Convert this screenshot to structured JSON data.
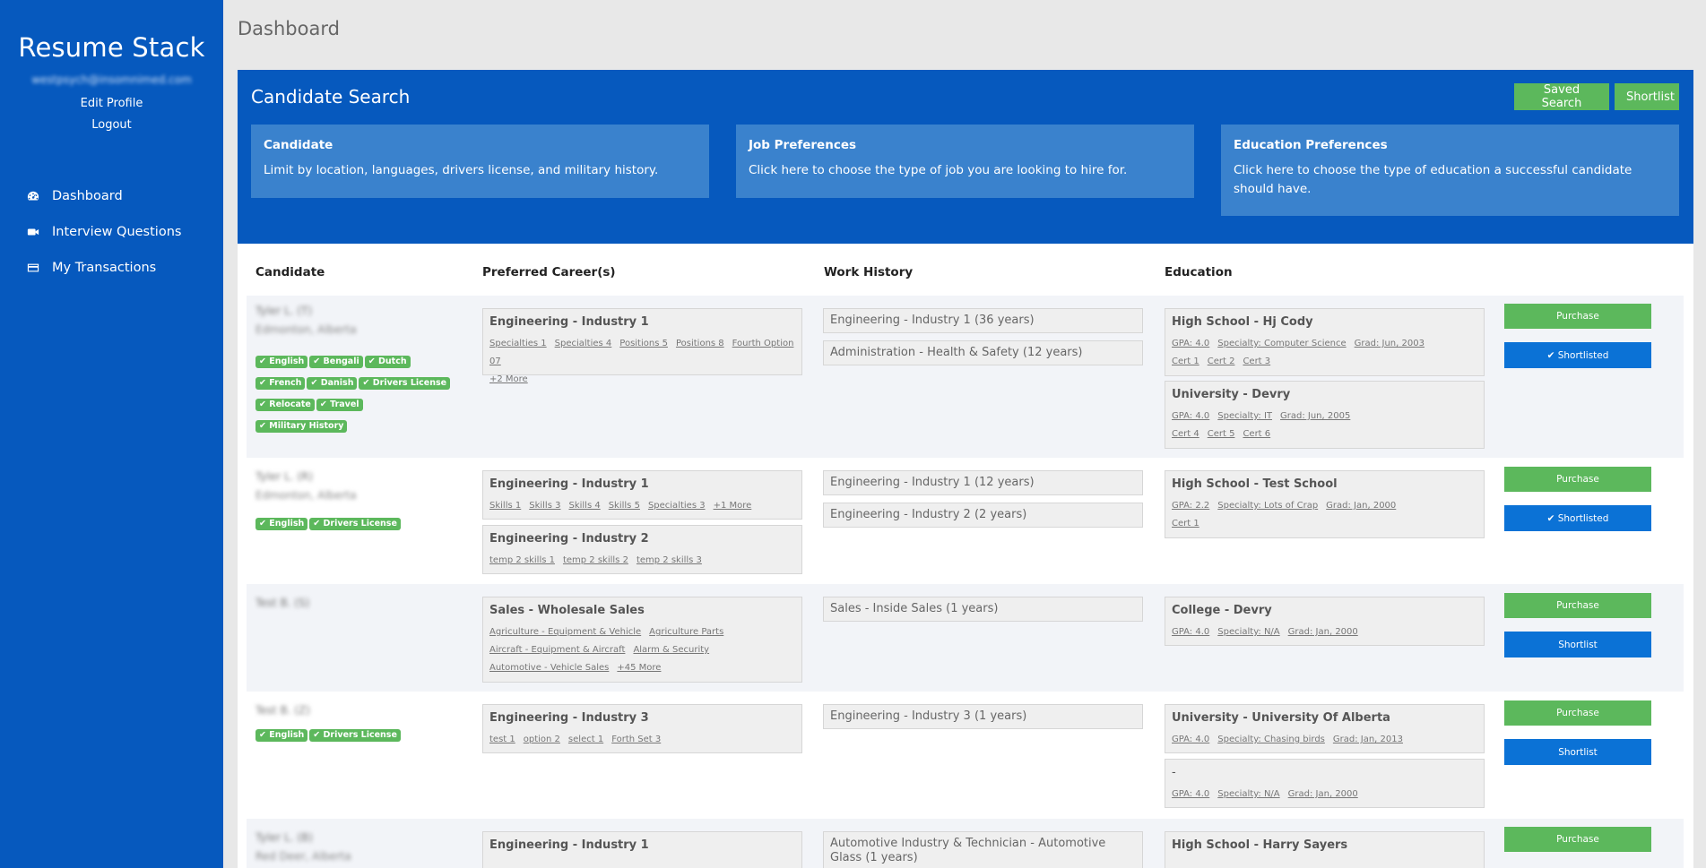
{
  "sidebar": {
    "brand": "Resume Stack",
    "email": "westpsych@insomnimed.com",
    "edit_profile": "Edit Profile",
    "logout": "Logout",
    "nav": [
      {
        "label": "Dashboard",
        "icon": "dashboard-icon"
      },
      {
        "label": "Interview Questions",
        "icon": "video-camera-icon"
      },
      {
        "label": "My Transactions",
        "icon": "credit-card-icon"
      }
    ]
  },
  "page": {
    "title": "Dashboard"
  },
  "search": {
    "title": "Candidate Search",
    "saved_search": "Saved Search",
    "shortlist": "Shortlist",
    "boxes": [
      {
        "title": "Candidate",
        "text": "Limit by location, languages, drivers license, and military history."
      },
      {
        "title": "Job Preferences",
        "text": "Click here to choose the type of job you are looking to hire for."
      },
      {
        "title": "Education Preferences",
        "text": "Click here to choose the type of education a successful candidate should have."
      }
    ]
  },
  "table": {
    "headers": [
      "Candidate",
      "Preferred Career(s)",
      "Work History",
      "Education"
    ],
    "purchase_label": "Purchase",
    "shortlist_label": "Shortlist",
    "shortlisted_label": "✔ Shortlisted",
    "rows": [
      {
        "name": "Tyler L. (T)",
        "location": "Edmonton, Alberta",
        "tags": [
          "English",
          "Bengali",
          "Dutch",
          "French",
          "Danish",
          "Drivers License",
          "Relocate",
          "Travel",
          "Military History"
        ],
        "careers": [
          {
            "title": "Engineering - Industry 1",
            "links": [
              "Specialties 1",
              "Specialties 4",
              "Positions 5",
              "Positions 8",
              "Fourth Option 07",
              "+2 More"
            ]
          }
        ],
        "work": [
          "Engineering - Industry 1 (36 years)",
          "Administration - Health & Safety (12 years)"
        ],
        "education": [
          {
            "title": "High School - Hj Cody",
            "links": [
              "GPA: 4.0",
              "Specialty: Computer Science",
              "Grad: Jun, 2003",
              "Cert 1",
              "Cert 2",
              "Cert 3"
            ]
          },
          {
            "title": "University - Devry",
            "links": [
              "GPA: 4.0",
              "Specialty: IT",
              "Grad: Jun, 2005",
              "Cert 4",
              "Cert 5",
              "Cert 6"
            ]
          }
        ]
      },
      {
        "name": "Tyler L. (R)",
        "location": "Edmonton, Alberta",
        "tags": [
          "English",
          "Drivers License"
        ],
        "careers": [
          {
            "title": "Engineering - Industry 1",
            "links": [
              "Skills 1",
              "Skills 3",
              "Skills 4",
              "Skills 5",
              "Specialties 3",
              "+1 More"
            ]
          },
          {
            "title": "Engineering - Industry 2",
            "links": [
              "temp 2 skills 1",
              "temp 2 skills 2",
              "temp 2 skills 3"
            ]
          }
        ],
        "work": [
          "Engineering - Industry 1 (12 years)",
          "Engineering - Industry 2 (2 years)"
        ],
        "education": [
          {
            "title": "High School - Test School",
            "links": [
              "GPA: 2.2",
              "Specialty: Lots of Crap",
              "Grad: Jan, 2000",
              "Cert 1"
            ]
          }
        ]
      },
      {
        "name": "Test B. (S)",
        "location": "",
        "tags": [],
        "careers": [
          {
            "title": "Sales - Wholesale Sales",
            "links": [
              "Agriculture - Equipment & Vehicle",
              "Agriculture Parts",
              "Aircraft - Equipment & Aircraft",
              "Alarm & Security",
              "Automotive - Vehicle Sales",
              "+45 More"
            ]
          }
        ],
        "work": [
          "Sales - Inside Sales (1 years)"
        ],
        "education": [
          {
            "title": "College - Devry",
            "links": [
              "GPA: 4.0",
              "Specialty: N/A",
              "Grad: Jan, 2000"
            ]
          }
        ]
      },
      {
        "name": "Test B. (Z)",
        "location": "",
        "tags": [
          "English",
          "Drivers License"
        ],
        "careers": [
          {
            "title": "Engineering - Industry 3",
            "links": [
              "test 1",
              "option 2",
              "select 1",
              "Forth Set 3"
            ]
          }
        ],
        "work": [
          "Engineering - Industry 3 (1 years)"
        ],
        "education": [
          {
            "title": "University - University Of Alberta",
            "links": [
              "GPA: 4.0",
              "Specialty: Chasing birds",
              "Grad: Jan, 2013"
            ]
          },
          {
            "title": "-",
            "links": [
              "GPA: 4.0",
              "Specialty: N/A",
              "Grad: Jan, 2000"
            ]
          }
        ]
      },
      {
        "name": "Tyler L. (B)",
        "location": "Red Deer, Alberta",
        "tags": [],
        "careers": [
          {
            "title": "Engineering - Industry 1",
            "links": []
          }
        ],
        "work": [
          "Automotive Industry & Technician - Automotive Glass (1 years)"
        ],
        "education": [
          {
            "title": "High School - Harry Sayers",
            "links": []
          }
        ]
      }
    ]
  }
}
